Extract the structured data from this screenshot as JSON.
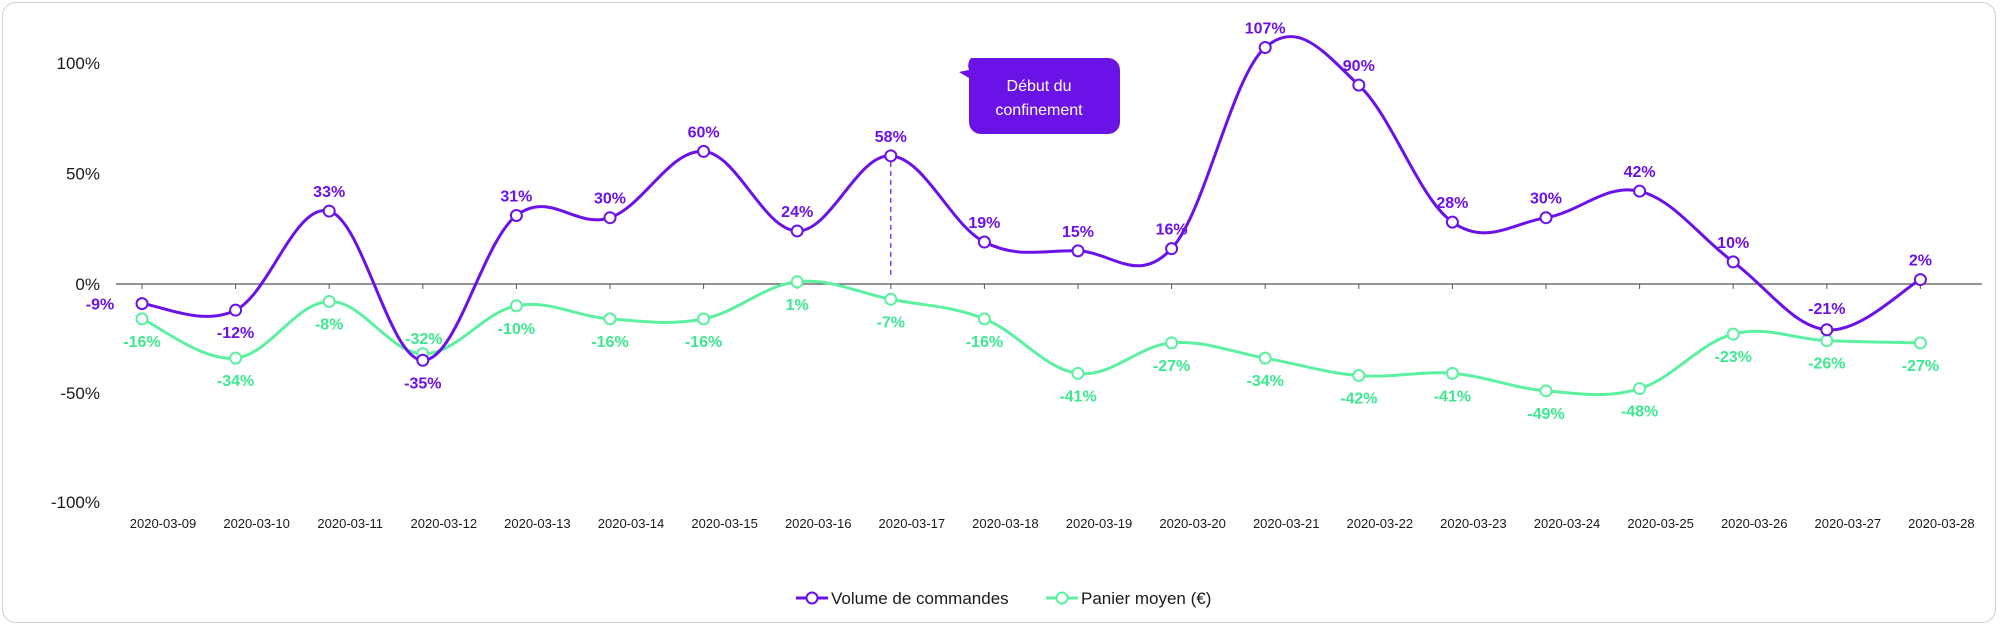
{
  "chart_data": {
    "type": "line",
    "categories": [
      "2020-03-09",
      "2020-03-10",
      "2020-03-11",
      "2020-03-12",
      "2020-03-13",
      "2020-03-14",
      "2020-03-15",
      "2020-03-16",
      "2020-03-17",
      "2020-03-18",
      "2020-03-19",
      "2020-03-20",
      "2020-03-21",
      "2020-03-22",
      "2020-03-23",
      "2020-03-24",
      "2020-03-25",
      "2020-03-26",
      "2020-03-27",
      "2020-03-28"
    ],
    "series": [
      {
        "name": "Volume de commandes",
        "color": "#6b12e6",
        "values": [
          -9,
          -12,
          33,
          -35,
          31,
          30,
          60,
          24,
          58,
          19,
          15,
          16,
          107,
          90,
          28,
          30,
          42,
          10,
          -21,
          2
        ],
        "labels": [
          "-9%",
          "-12%",
          "33%",
          "-35%",
          "31%",
          "30%",
          "60%",
          "24%",
          "58%",
          "19%",
          "15%",
          "16%",
          "107%",
          "90%",
          "28%",
          "30%",
          "42%",
          "10%",
          "-21%",
          "2%"
        ]
      },
      {
        "name": "Panier moyen (€)",
        "color": "#5ef0a2",
        "label_color": "#3ee88f",
        "values": [
          -16,
          -34,
          -8,
          -32,
          -10,
          -16,
          -16,
          1,
          -7,
          -16,
          -41,
          -27,
          -34,
          -42,
          -41,
          -49,
          -48,
          -23,
          -26,
          -27
        ],
        "labels": [
          "-16%",
          "-34%",
          "-8%",
          "-32%",
          "-10%",
          "-16%",
          "-16%",
          "1%",
          "-7%",
          "-16%",
          "-41%",
          "-27%",
          "-34%",
          "-42%",
          "-41%",
          "-49%",
          "-48%",
          "-23%",
          "-26%",
          "-27%"
        ]
      }
    ],
    "ylim": [
      -100,
      100
    ],
    "yticks": [
      100,
      50,
      0,
      -50,
      -100
    ],
    "ytick_labels": [
      "100%",
      "50%",
      "0%",
      "-50%",
      "-100%"
    ],
    "annotation": {
      "text_line1": "Début du",
      "text_line2": "confinement",
      "category": "2020-03-17",
      "color": "#6b12e6"
    },
    "legend_position": "bottom-center",
    "grid": false
  }
}
